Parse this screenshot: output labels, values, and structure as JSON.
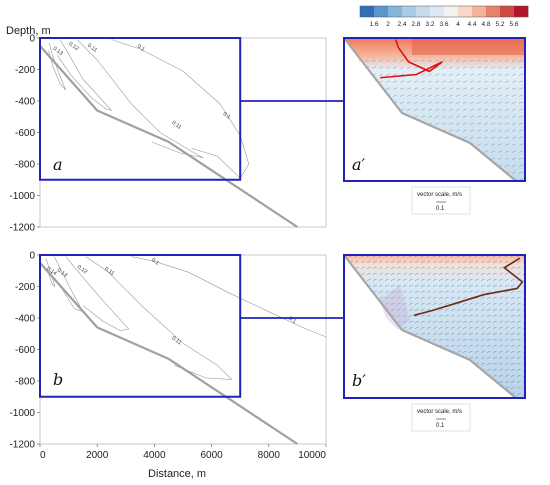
{
  "figure": {
    "ylabel": "Depth, m",
    "xlabel": "Distance, m",
    "panel_labels": [
      "a",
      "a′",
      "b",
      "b′"
    ],
    "vector_scale": {
      "label": "vector scale, m/s",
      "value": "0.1"
    },
    "colors": {
      "frame": "#2222bb",
      "bathymetry": "#a0a0a0",
      "contour": "#9a9a9a",
      "front_a": "#dd1111",
      "front_b": "#6b2a12",
      "vector": "#7a8a9a"
    }
  },
  "chart_data": [
    {
      "type": "contour",
      "panel": "a",
      "xlim": [
        0,
        10000
      ],
      "ylim": [
        -1200,
        0
      ],
      "xticks": [
        "0",
        "2000",
        "4000",
        "6000",
        "8000",
        "10000"
      ],
      "yticks": [
        "0",
        "-200",
        "-400",
        "-600",
        "-800",
        "-1000",
        "-1200"
      ],
      "bathymetry": {
        "x": [
          0,
          2000,
          4500,
          9000
        ],
        "y": [
          -50,
          -460,
          -660,
          -1200
        ]
      },
      "contours": [
        {
          "level": "0.13",
          "points": [
            [
              320,
              -30
            ],
            [
              420,
              -100
            ],
            [
              650,
              -220
            ],
            [
              900,
              -330
            ],
            [
              700,
              -290
            ],
            [
              450,
              -180
            ],
            [
              300,
              -80
            ]
          ]
        },
        {
          "level": "0.12",
          "points": [
            [
              700,
              -10
            ],
            [
              1000,
              -100
            ],
            [
              1500,
              -260
            ],
            [
              2500,
              -460
            ],
            [
              2300,
              -450
            ],
            [
              1800,
              -380
            ],
            [
              1100,
              -240
            ],
            [
              600,
              -110
            ]
          ]
        },
        {
          "level": "0.11",
          "points": [
            [
              1300,
              -10
            ],
            [
              2000,
              -140
            ],
            [
              3200,
              -420
            ],
            [
              4200,
              -600
            ],
            [
              5400,
              -730
            ],
            [
              5700,
              -760
            ],
            [
              4900,
              -730
            ],
            [
              3900,
              -660
            ]
          ]
        },
        {
          "level": "0.1",
          "points": [
            [
              2500,
              -10
            ],
            [
              3500,
              -70
            ],
            [
              5000,
              -210
            ],
            [
              6300,
              -420
            ],
            [
              7000,
              -620
            ],
            [
              7300,
              -800
            ],
            [
              7000,
              -890
            ],
            [
              6200,
              -750
            ],
            [
              5300,
              -700
            ]
          ]
        }
      ],
      "contour_labels": [
        {
          "text": "0.13",
          "x": 600,
          "y": -90
        },
        {
          "text": "0.12",
          "x": 1150,
          "y": -60
        },
        {
          "text": "0.11",
          "x": 1800,
          "y": -70
        },
        {
          "text": "0.1",
          "x": 3500,
          "y": -70
        },
        {
          "text": "0.11",
          "x": 4750,
          "y": -560
        },
        {
          "text": "0.1",
          "x": 6500,
          "y": -500
        }
      ],
      "zoom_box": {
        "x": [
          0,
          7000
        ],
        "y": [
          -900,
          0
        ]
      }
    },
    {
      "type": "contour",
      "panel": "b",
      "xlim": [
        0,
        10000
      ],
      "ylim": [
        -1200,
        0
      ],
      "xticks": [
        "0",
        "2000",
        "4000",
        "6000",
        "8000",
        "10000"
      ],
      "yticks": [
        "0",
        "-200",
        "-400",
        "-600",
        "-800",
        "-1000",
        "-1200"
      ],
      "bathymetry": {
        "x": [
          0,
          2000,
          4500,
          9000
        ],
        "y": [
          -50,
          -460,
          -660,
          -1200
        ]
      },
      "contours": [
        {
          "level": "0.14",
          "points": [
            [
              200,
              -20
            ],
            [
              380,
              -110
            ],
            [
              520,
              -200
            ],
            [
              440,
              -190
            ],
            [
              280,
              -110
            ]
          ]
        },
        {
          "level": "0.13",
          "points": [
            [
              500,
              -10
            ],
            [
              800,
              -120
            ],
            [
              1200,
              -260
            ],
            [
              1500,
              -360
            ],
            [
              1200,
              -340
            ],
            [
              750,
              -210
            ]
          ]
        },
        {
          "level": "0.12",
          "points": [
            [
              900,
              -10
            ],
            [
              1400,
              -120
            ],
            [
              2200,
              -290
            ],
            [
              3100,
              -470
            ],
            [
              2800,
              -480
            ],
            [
              2200,
              -420
            ],
            [
              1500,
              -320
            ]
          ]
        },
        {
          "level": "0.11",
          "points": [
            [
              1600,
              -10
            ],
            [
              2400,
              -110
            ],
            [
              3600,
              -330
            ],
            [
              5000,
              -560
            ],
            [
              6200,
              -700
            ],
            [
              6700,
              -790
            ],
            [
              5800,
              -780
            ],
            [
              4700,
              -700
            ]
          ]
        },
        {
          "level": "0.1",
          "points": [
            [
              3200,
              -10
            ],
            [
              4000,
              -40
            ],
            [
              5200,
              -110
            ],
            [
              6600,
              -240
            ],
            [
              8000,
              -360
            ],
            [
              9300,
              -470
            ],
            [
              10000,
              -520
            ]
          ]
        }
      ],
      "contour_labels": [
        {
          "text": "0.14",
          "x": 380,
          "y": -110
        },
        {
          "text": "0.13",
          "x": 750,
          "y": -120
        },
        {
          "text": "0.12",
          "x": 1450,
          "y": -100
        },
        {
          "text": "0.11",
          "x": 2400,
          "y": -110
        },
        {
          "text": "0.1",
          "x": 4000,
          "y": -50
        },
        {
          "text": "0.11",
          "x": 4750,
          "y": -550
        },
        {
          "text": "0.1",
          "x": 8800,
          "y": -420
        }
      ],
      "zoom_box": {
        "x": [
          0,
          7000
        ],
        "y": [
          -900,
          0
        ]
      }
    },
    {
      "type": "heatmap",
      "panel": "a′",
      "colorbar": {
        "ticks": [
          "1.6",
          "2",
          "2.4",
          "2.8",
          "3.2",
          "3.6",
          "4",
          "4.4",
          "4.8",
          "5.2",
          "5.6"
        ],
        "colors": [
          "#2f6fb4",
          "#5a95cb",
          "#86b5dc",
          "#a9cbe6",
          "#c6dcee",
          "#ddeaf5",
          "#f3f2f1",
          "#f9d8c8",
          "#f4b49b",
          "#e7816a",
          "#cf4a44",
          "#b5152c"
        ]
      },
      "front": [
        [
          2000,
          -10
        ],
        [
          2100,
          -60
        ],
        [
          2500,
          -150
        ],
        [
          3300,
          -210
        ],
        [
          3800,
          -150
        ],
        [
          2800,
          -230
        ],
        [
          1400,
          -250
        ]
      ]
    },
    {
      "type": "heatmap",
      "panel": "b′",
      "front": [
        [
          6800,
          -20
        ],
        [
          6200,
          -80
        ],
        [
          6900,
          -170
        ],
        [
          6700,
          -210
        ],
        [
          5400,
          -250
        ],
        [
          4200,
          -310
        ],
        [
          3400,
          -350
        ],
        [
          2700,
          -380
        ]
      ]
    }
  ]
}
